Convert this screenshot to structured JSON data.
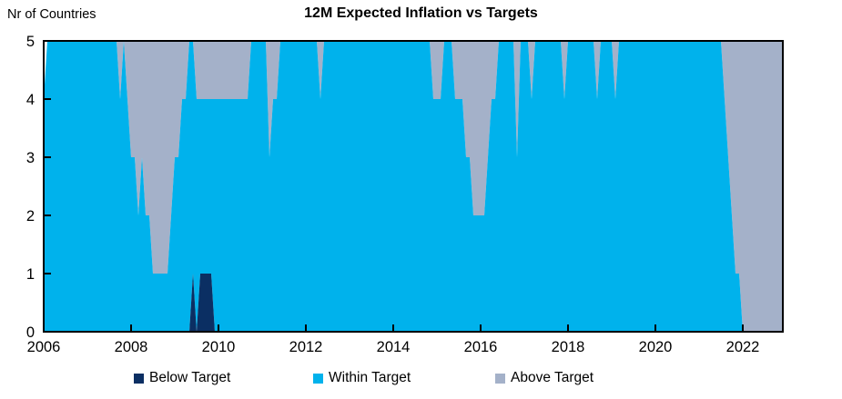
{
  "figure": {
    "title": "12M Expected Inflation vs Targets",
    "y_axis_label": "Nr of Countries"
  },
  "legend": [
    {
      "label": "Below Target",
      "color": "#0B2F63"
    },
    {
      "label": "Within Target",
      "color": "#00B2EC"
    },
    {
      "label": "Above Target",
      "color": "#A4B1C9"
    }
  ],
  "chart_data": {
    "type": "area",
    "stacked": true,
    "title": "12M Expected Inflation vs Targets",
    "ylabel": "Nr of Countries",
    "xlabel": "",
    "x_start": "2006-01",
    "x_end": "2022-12",
    "x_step": "month",
    "n_points": 204,
    "ylim": [
      0,
      5
    ],
    "y_ticks": [
      0,
      1,
      2,
      3,
      4,
      5
    ],
    "x_tick_years": [
      "2006",
      "2008",
      "2010",
      "2012",
      "2014",
      "2016",
      "2018",
      "2020",
      "2022"
    ],
    "grid": false,
    "legend_position": "bottom",
    "series_order": [
      "below_target",
      "within_target",
      "above_target"
    ],
    "colors": {
      "below_target": "#0B2F63",
      "within_target": "#00B2EC",
      "above_target": "#A4B1C9",
      "frame": "#000000"
    },
    "encoding_note": "run-length pairs [value, month_count] from 2006-01 to 2022-12; below_plus_within is the stack boundary below+within; total is the full stack height (above = total - below_plus_within)",
    "runs": {
      "below_target": [
        [
          0,
          41
        ],
        [
          1,
          1
        ],
        [
          0,
          1
        ],
        [
          1,
          4
        ],
        [
          0,
          157
        ]
      ],
      "below_plus_within": [
        [
          4,
          1
        ],
        [
          5,
          20
        ],
        [
          4,
          1
        ],
        [
          5,
          1
        ],
        [
          4,
          1
        ],
        [
          3,
          2
        ],
        [
          2,
          1
        ],
        [
          3,
          1
        ],
        [
          2,
          2
        ],
        [
          1,
          5
        ],
        [
          2,
          1
        ],
        [
          3,
          2
        ],
        [
          4,
          2
        ],
        [
          5,
          2
        ],
        [
          4,
          15
        ],
        [
          5,
          5
        ],
        [
          3,
          1
        ],
        [
          4,
          2
        ],
        [
          5,
          11
        ],
        [
          4,
          1
        ],
        [
          5,
          30
        ],
        [
          4,
          3
        ],
        [
          5,
          3
        ],
        [
          4,
          3
        ],
        [
          3,
          2
        ],
        [
          2,
          4
        ],
        [
          3,
          1
        ],
        [
          4,
          2
        ],
        [
          5,
          5
        ],
        [
          3,
          1
        ],
        [
          5,
          3
        ],
        [
          4,
          1
        ],
        [
          5,
          8
        ],
        [
          4,
          1
        ],
        [
          5,
          8
        ],
        [
          4,
          1
        ],
        [
          5,
          4
        ],
        [
          4,
          1
        ],
        [
          5,
          29
        ],
        [
          4,
          1
        ],
        [
          3,
          1
        ],
        [
          2,
          1
        ],
        [
          1,
          2
        ],
        [
          0,
          12
        ]
      ],
      "total": [
        [
          4,
          1
        ],
        [
          5,
          203
        ]
      ]
    }
  }
}
